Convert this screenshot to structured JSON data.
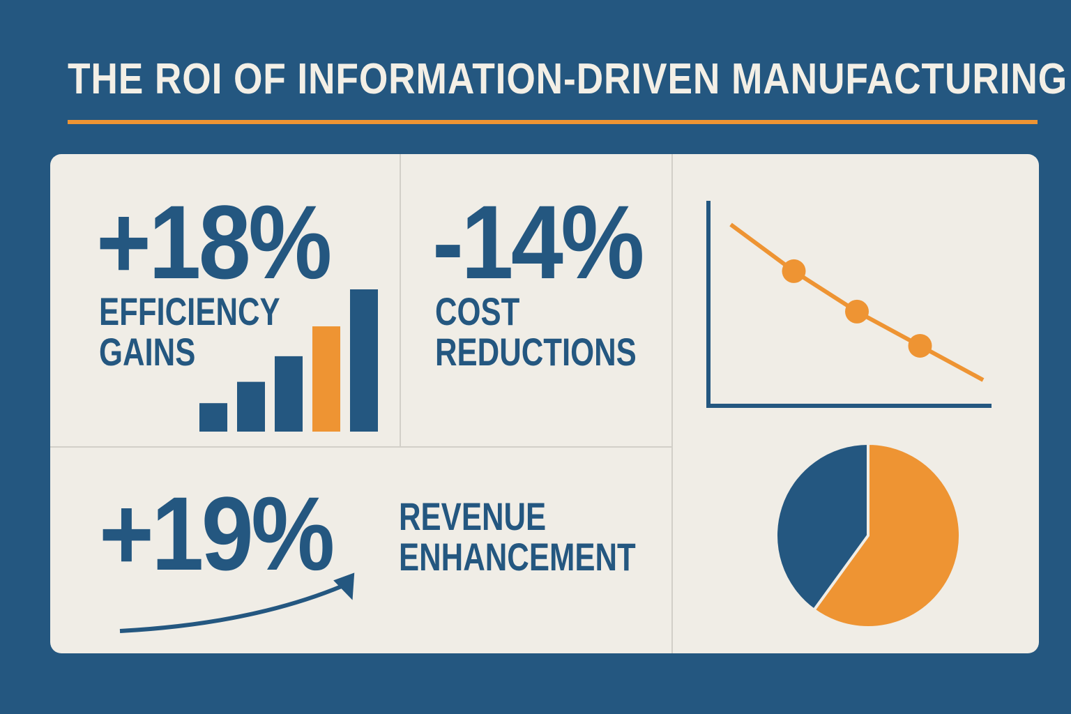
{
  "title": "THE ROI OF INFORMATION-DRIVEN MANUFACTURING",
  "colors": {
    "background": "#245780",
    "accent": "#ee9433",
    "card": "#f0ede6",
    "text": "#245780"
  },
  "metrics": [
    {
      "value": "+18%",
      "label_line1": "EFFICIENCY",
      "label_line2": "GAINS"
    },
    {
      "value": "-14%",
      "label_line1": "COST",
      "label_line2": "REDUCTIONS"
    },
    {
      "value": "+19%",
      "label_line1": "REVENUE",
      "label_line2": "ENHANCEMENT"
    }
  ],
  "chart_data": [
    {
      "type": "bar",
      "name": "efficiency-bars",
      "values": [
        2,
        3.5,
        5.3,
        7.4,
        10
      ],
      "highlight_index": 3,
      "colors": [
        "#245780",
        "#245780",
        "#245780",
        "#ee9433",
        "#245780"
      ]
    },
    {
      "type": "line",
      "name": "cost-trend",
      "x": [
        0,
        1,
        2,
        3,
        4
      ],
      "y": [
        10,
        8.5,
        7.2,
        6.1,
        5
      ],
      "markers_at": [
        1,
        2,
        3
      ]
    },
    {
      "type": "pie",
      "name": "share-pie",
      "slices": [
        {
          "value": 60,
          "color": "#ee9433"
        },
        {
          "value": 40,
          "color": "#245780"
        }
      ]
    }
  ]
}
